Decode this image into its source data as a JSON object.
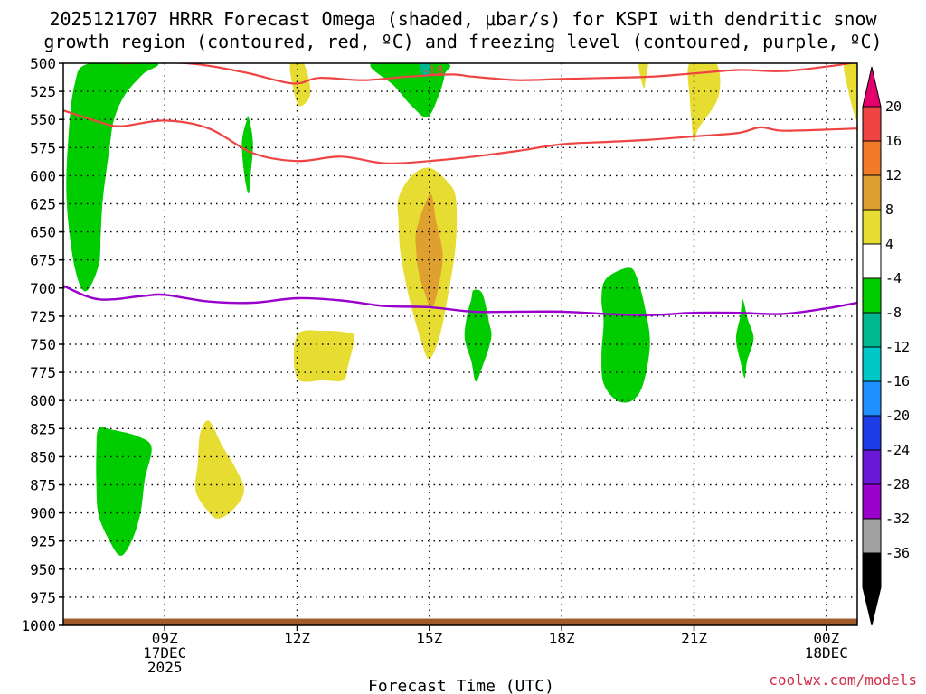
{
  "chart_data": {
    "type": "heatmap",
    "title_line1": "2025121707 HRRR Forecast Omega (shaded, μbar/s) for KSPI with dendritic snow",
    "title_line2": "growth region (contoured, red, ºC) and freezing level (contoured, purple, ºC)",
    "xlabel": "Forecast Time (UTC)",
    "credit": "coolwx.com/models",
    "x_range": [
      6.7,
      24.7
    ],
    "y_range": [
      500,
      1000
    ],
    "y_ticks": [
      500,
      525,
      550,
      575,
      600,
      625,
      650,
      675,
      700,
      725,
      750,
      775,
      800,
      825,
      850,
      875,
      900,
      925,
      950,
      975,
      1000
    ],
    "x_ticks": [
      {
        "t": 9,
        "lines": [
          "09Z",
          "17DEC",
          "2025"
        ]
      },
      {
        "t": 12,
        "lines": [
          "12Z"
        ]
      },
      {
        "t": 15,
        "lines": [
          "15Z"
        ]
      },
      {
        "t": 18,
        "lines": [
          "18Z"
        ]
      },
      {
        "t": 21,
        "lines": [
          "21Z"
        ]
      },
      {
        "t": 24,
        "lines": [
          "00Z",
          "18DEC"
        ]
      }
    ],
    "contour_label": "-18",
    "contour_label_pos": [
      15.1,
      506
    ],
    "colors": {
      "green": "#00cc00",
      "teal": "#00b890",
      "yellow": "#e6dc32",
      "orange": "#e0a030",
      "red_line": "#ee4444",
      "purple_line": "#9900cc",
      "ground": "#a05a2c"
    },
    "shaded_regions": [
      {
        "value": -6,
        "color": "green",
        "pts": [
          [
            7.3,
            500
          ],
          [
            8.8,
            500
          ],
          [
            8.5,
            510
          ],
          [
            8.1,
            528
          ],
          [
            7.85,
            550
          ],
          [
            7.75,
            575
          ],
          [
            7.6,
            620
          ],
          [
            7.55,
            650
          ],
          [
            7.5,
            680
          ],
          [
            7.2,
            703
          ],
          [
            6.95,
            680
          ],
          [
            6.78,
            625
          ],
          [
            6.8,
            575
          ],
          [
            6.95,
            520
          ]
        ]
      },
      {
        "value": -6,
        "color": "green",
        "pts": [
          [
            10.9,
            548
          ],
          [
            11.0,
            570
          ],
          [
            10.95,
            598
          ],
          [
            10.9,
            616
          ],
          [
            10.8,
            598
          ],
          [
            10.75,
            570
          ],
          [
            10.85,
            552
          ]
        ]
      },
      {
        "value": 4,
        "color": "yellow",
        "pts": [
          [
            11.85,
            500
          ],
          [
            12.15,
            500
          ],
          [
            12.3,
            527
          ],
          [
            12.05,
            538
          ],
          [
            11.9,
            520
          ]
        ]
      },
      {
        "value": -6,
        "color": "green",
        "pts": [
          [
            13.7,
            500
          ],
          [
            15.35,
            500
          ],
          [
            15.35,
            510
          ],
          [
            15.2,
            530
          ],
          [
            14.95,
            548
          ],
          [
            14.6,
            538
          ],
          [
            14.2,
            520
          ]
        ]
      },
      {
        "value": -14,
        "color": "teal",
        "pts": [
          [
            14.8,
            500
          ],
          [
            15.0,
            500
          ],
          [
            14.98,
            511
          ],
          [
            14.85,
            511
          ]
        ]
      },
      {
        "value": 4,
        "color": "yellow",
        "pts": [
          [
            19.75,
            500
          ],
          [
            19.95,
            500
          ],
          [
            19.9,
            515
          ],
          [
            19.87,
            522
          ],
          [
            19.8,
            515
          ]
        ]
      },
      {
        "value": 4,
        "color": "yellow",
        "pts": [
          [
            20.9,
            500
          ],
          [
            21.5,
            500
          ],
          [
            21.55,
            530
          ],
          [
            21.1,
            558
          ],
          [
            21.0,
            570
          ],
          [
            20.95,
            555
          ],
          [
            20.9,
            530
          ]
        ]
      },
      {
        "value": 4,
        "color": "yellow",
        "pts": [
          [
            24.4,
            500
          ],
          [
            24.7,
            500
          ],
          [
            24.7,
            550
          ],
          [
            24.5,
            525
          ]
        ]
      },
      {
        "value": 4,
        "color": "yellow",
        "pts": [
          [
            14.3,
            620
          ],
          [
            14.6,
            600
          ],
          [
            15.0,
            593
          ],
          [
            15.4,
            605
          ],
          [
            15.6,
            620
          ],
          [
            15.6,
            660
          ],
          [
            15.45,
            700
          ],
          [
            15.25,
            740
          ],
          [
            15.0,
            763
          ],
          [
            14.8,
            745
          ],
          [
            14.55,
            710
          ],
          [
            14.35,
            670
          ],
          [
            14.3,
            640
          ]
        ]
      },
      {
        "value": 10,
        "color": "orange",
        "pts": [
          [
            14.7,
            650
          ],
          [
            14.9,
            625
          ],
          [
            15.05,
            617
          ],
          [
            15.15,
            640
          ],
          [
            15.3,
            670
          ],
          [
            15.2,
            700
          ],
          [
            15.05,
            718
          ],
          [
            14.9,
            705
          ],
          [
            14.75,
            685
          ],
          [
            14.7,
            665
          ]
        ]
      },
      {
        "value": -6,
        "color": "green",
        "pts": [
          [
            16.0,
            702
          ],
          [
            16.2,
            705
          ],
          [
            16.35,
            730
          ],
          [
            16.4,
            745
          ],
          [
            16.2,
            770
          ],
          [
            16.05,
            783
          ],
          [
            15.95,
            765
          ],
          [
            15.8,
            745
          ],
          [
            15.85,
            725
          ],
          [
            15.95,
            710
          ]
        ]
      },
      {
        "value": 4,
        "color": "yellow",
        "pts": [
          [
            12.0,
            742
          ],
          [
            12.6,
            738
          ],
          [
            13.2,
            740
          ],
          [
            13.3,
            745
          ],
          [
            13.15,
            770
          ],
          [
            13.05,
            782
          ],
          [
            12.6,
            782
          ],
          [
            12.0,
            780
          ]
        ]
      },
      {
        "value": -6,
        "color": "green",
        "pts": [
          [
            19.0,
            692
          ],
          [
            19.5,
            682
          ],
          [
            19.7,
            690
          ],
          [
            19.9,
            720
          ],
          [
            20.0,
            750
          ],
          [
            19.85,
            785
          ],
          [
            19.6,
            800
          ],
          [
            19.25,
            800
          ],
          [
            18.95,
            785
          ],
          [
            18.9,
            760
          ],
          [
            18.95,
            730
          ],
          [
            18.9,
            710
          ]
        ]
      },
      {
        "value": -6,
        "color": "green",
        "pts": [
          [
            22.1,
            710
          ],
          [
            22.22,
            728
          ],
          [
            22.35,
            745
          ],
          [
            22.2,
            765
          ],
          [
            22.15,
            780
          ],
          [
            22.05,
            765
          ],
          [
            21.95,
            745
          ],
          [
            22.05,
            725
          ]
        ]
      },
      {
        "value": -6,
        "color": "green",
        "pts": [
          [
            7.5,
            825
          ],
          [
            7.8,
            826
          ],
          [
            8.4,
            832
          ],
          [
            8.7,
            842
          ],
          [
            8.55,
            870
          ],
          [
            8.45,
            900
          ],
          [
            8.25,
            925
          ],
          [
            8.0,
            938
          ],
          [
            7.75,
            925
          ],
          [
            7.5,
            902
          ],
          [
            7.45,
            875
          ],
          [
            7.45,
            845
          ]
        ]
      },
      {
        "value": 4,
        "color": "yellow",
        "pts": [
          [
            9.8,
            830
          ],
          [
            10.0,
            818
          ],
          [
            10.3,
            840
          ],
          [
            10.6,
            860
          ],
          [
            10.8,
            880
          ],
          [
            10.55,
            897
          ],
          [
            10.2,
            905
          ],
          [
            9.95,
            897
          ],
          [
            9.7,
            880
          ],
          [
            9.75,
            855
          ]
        ]
      }
    ],
    "red_contours": [
      [
        [
          8.0,
          500
        ],
        [
          9.5,
          500
        ],
        [
          10.8,
          508
        ],
        [
          11.9,
          518
        ],
        [
          12.5,
          513
        ],
        [
          13.5,
          515
        ],
        [
          14.5,
          512
        ],
        [
          15.5,
          510
        ],
        [
          16.0,
          512
        ],
        [
          17.0,
          515
        ],
        [
          18.0,
          514
        ],
        [
          19.0,
          513
        ],
        [
          20.0,
          512
        ],
        [
          21.0,
          509
        ],
        [
          22.0,
          506
        ],
        [
          23.0,
          507
        ],
        [
          24.0,
          503
        ],
        [
          24.7,
          499
        ]
      ],
      [
        [
          6.7,
          542
        ],
        [
          7.5,
          552
        ],
        [
          8.0,
          556
        ],
        [
          9.0,
          551
        ],
        [
          10.0,
          558
        ],
        [
          11.0,
          580
        ],
        [
          12.0,
          587
        ],
        [
          13.0,
          583
        ],
        [
          14.0,
          589
        ],
        [
          15.0,
          587
        ],
        [
          16.0,
          583
        ],
        [
          17.0,
          578
        ],
        [
          18.0,
          572
        ],
        [
          19.0,
          570
        ],
        [
          20.0,
          568
        ],
        [
          21.0,
          565
        ],
        [
          22.0,
          562
        ],
        [
          22.5,
          557
        ],
        [
          23.0,
          560
        ],
        [
          24.0,
          559
        ],
        [
          24.7,
          558
        ]
      ]
    ],
    "purple_contour": [
      [
        6.7,
        698
      ],
      [
        7.5,
        710
      ],
      [
        8.5,
        707
      ],
      [
        9.0,
        706
      ],
      [
        10.0,
        712
      ],
      [
        11.0,
        713
      ],
      [
        12.0,
        709
      ],
      [
        13.0,
        711
      ],
      [
        14.0,
        716
      ],
      [
        15.0,
        717
      ],
      [
        16.0,
        721
      ],
      [
        17.0,
        721
      ],
      [
        18.0,
        721
      ],
      [
        19.0,
        723
      ],
      [
        20.0,
        724
      ],
      [
        21.0,
        722
      ],
      [
        22.0,
        722
      ],
      [
        23.0,
        723
      ],
      [
        24.0,
        718
      ],
      [
        24.7,
        713
      ]
    ],
    "ground_top_level": 994,
    "colorbar": [
      {
        "label": "20",
        "color": "#ee4444"
      },
      {
        "label": "16",
        "color": "#f07a28"
      },
      {
        "label": "12",
        "color": "#e0a030"
      },
      {
        "label": "8",
        "color": "#e6dc32"
      },
      {
        "label": "4",
        "color": "#ffffff"
      },
      {
        "label": "-4",
        "color": "#00cc00"
      },
      {
        "label": "-8",
        "color": "#00b890"
      },
      {
        "label": "-12",
        "color": "#00c8c8"
      },
      {
        "label": "-16",
        "color": "#1e90ff"
      },
      {
        "label": "-20",
        "color": "#1e3ce6"
      },
      {
        "label": "-24",
        "color": "#6a18d8"
      },
      {
        "label": "-28",
        "color": "#9900cc"
      },
      {
        "label": "-32",
        "color": "#a0a0a0"
      },
      {
        "label": "-36",
        "color": "#000000"
      }
    ],
    "colorbar_top_arrow_color": "#e6006e",
    "colorbar_bottom_arrow_color": "#000000"
  }
}
